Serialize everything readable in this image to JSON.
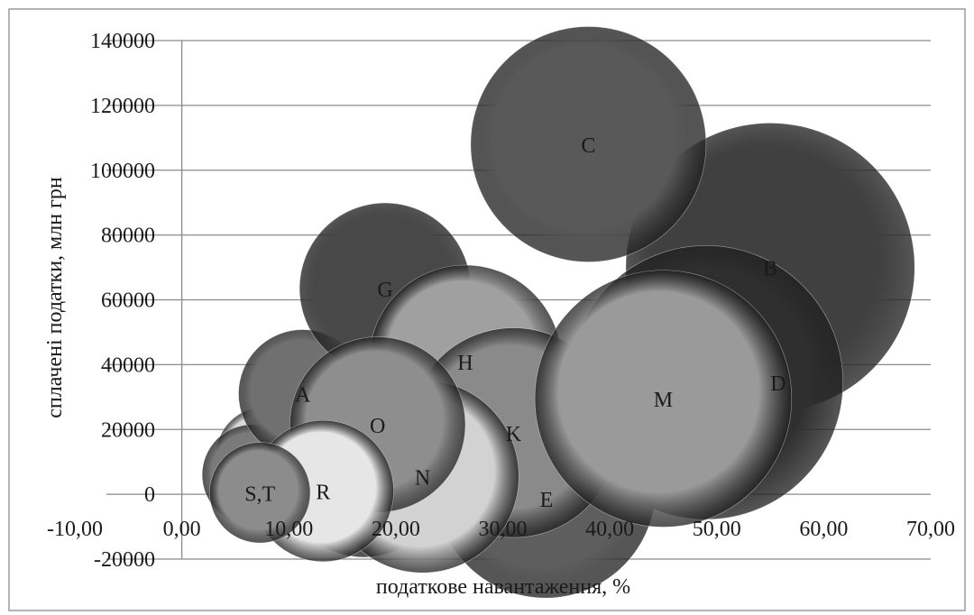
{
  "chart_data": {
    "type": "bubble",
    "title": "",
    "xlabel": "податкове навантаження, %",
    "ylabel": "сплачені податки, млн грн",
    "xlim": [
      -10,
      70
    ],
    "ylim": [
      -20000,
      140000
    ],
    "x_ticks": [
      "-10,00",
      "0,00",
      "10,00",
      "20,00",
      "30,00",
      "40,00",
      "50,00",
      "60,00",
      "70,00"
    ],
    "y_ticks": [
      "-20000",
      "0",
      "20000",
      "40000",
      "60000",
      "80000",
      "100000",
      "120000",
      "140000"
    ],
    "grid": "horizontal",
    "legend": "none",
    "points": [
      {
        "label": "",
        "x": 7.7,
        "y": 12000,
        "size": 4.5,
        "color": "#dcdcdc"
      },
      {
        "label": "",
        "x": 17.0,
        "y": 5000,
        "size": 7.4,
        "color": "#5a5a5a"
      },
      {
        "label": "",
        "x": 15.0,
        "y": 17000,
        "size": 6.1,
        "color": "#3f3f3f"
      },
      {
        "label": "",
        "x": 23.0,
        "y": 16000,
        "size": 6.1,
        "color": "#bbbbbb"
      },
      {
        "label": "",
        "x": 6.6,
        "y": 6000,
        "size": 4.7,
        "color": "#7a7a7a"
      },
      {
        "label": "",
        "x": 14.2,
        "y": 9000,
        "size": 6.2,
        "color": "#a8a8a8"
      },
      {
        "label": "A",
        "x": 11.3,
        "y": 31000,
        "size": 6.0,
        "color": "#707070"
      },
      {
        "label": "B",
        "x": 55.0,
        "y": 70000,
        "size": 13.5,
        "color": "#404040"
      },
      {
        "label": "C",
        "x": 38.0,
        "y": 108000,
        "size": 11.0,
        "color": "#595959"
      },
      {
        "label": "D",
        "x": 49.0,
        "y": 34500,
        "size": 12.8,
        "color": "#2f2f2f"
      },
      {
        "label": "E",
        "x": 34.0,
        "y": 2000,
        "size": 10.3,
        "color": "#5e5e5e"
      },
      {
        "label": "G",
        "x": 19.0,
        "y": 63500,
        "size": 8.0,
        "color": "#484848"
      },
      {
        "label": "H",
        "x": 26.5,
        "y": 41000,
        "size": 9.0,
        "color": "#a0a0a0"
      },
      {
        "label": "K",
        "x": 31.0,
        "y": 19000,
        "size": 9.8,
        "color": "#8a8a8a"
      },
      {
        "label": "M",
        "x": 45.0,
        "y": 29500,
        "size": 12.0,
        "color": "#9a9a9a"
      },
      {
        "label": "N",
        "x": 22.5,
        "y": 5500,
        "size": 9.0,
        "color": "#d2d2d2"
      },
      {
        "label": "O",
        "x": 18.3,
        "y": 21500,
        "size": 8.2,
        "color": "#8e8e8e"
      },
      {
        "label": "R",
        "x": 13.2,
        "y": 1000,
        "size": 6.6,
        "color": "#e6e6e6"
      },
      {
        "label": "S,T",
        "x": 7.3,
        "y": 500,
        "size": 4.7,
        "color": "#8c8c8c"
      }
    ]
  }
}
